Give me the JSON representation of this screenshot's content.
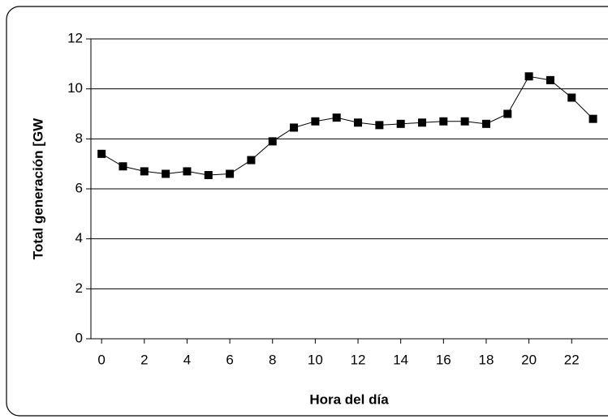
{
  "chart_data": {
    "type": "line",
    "x_label": "Hora del día",
    "y_label": "Total generación [GW",
    "x": [
      0,
      1,
      2,
      3,
      4,
      5,
      6,
      7,
      8,
      9,
      10,
      11,
      12,
      13,
      14,
      15,
      16,
      17,
      18,
      19,
      20,
      21,
      22,
      23
    ],
    "series": [
      {
        "color": "#000000",
        "values": [
          7.4,
          6.9,
          6.7,
          6.6,
          6.7,
          6.55,
          6.6,
          7.15,
          7.9,
          8.45,
          8.7,
          8.85,
          8.65,
          8.55,
          8.6,
          8.65,
          8.7,
          8.7,
          8.6,
          9.0,
          10.5,
          10.35,
          9.65,
          8.8
        ]
      }
    ],
    "xlim": [
      -0.5,
      23.7
    ],
    "xticks": [
      0,
      2,
      4,
      6,
      8,
      10,
      12,
      14,
      16,
      18,
      20,
      22
    ],
    "ylim": [
      0,
      12
    ],
    "yticks": [
      0,
      2,
      4,
      6,
      8,
      10,
      12
    ],
    "grid": true
  }
}
